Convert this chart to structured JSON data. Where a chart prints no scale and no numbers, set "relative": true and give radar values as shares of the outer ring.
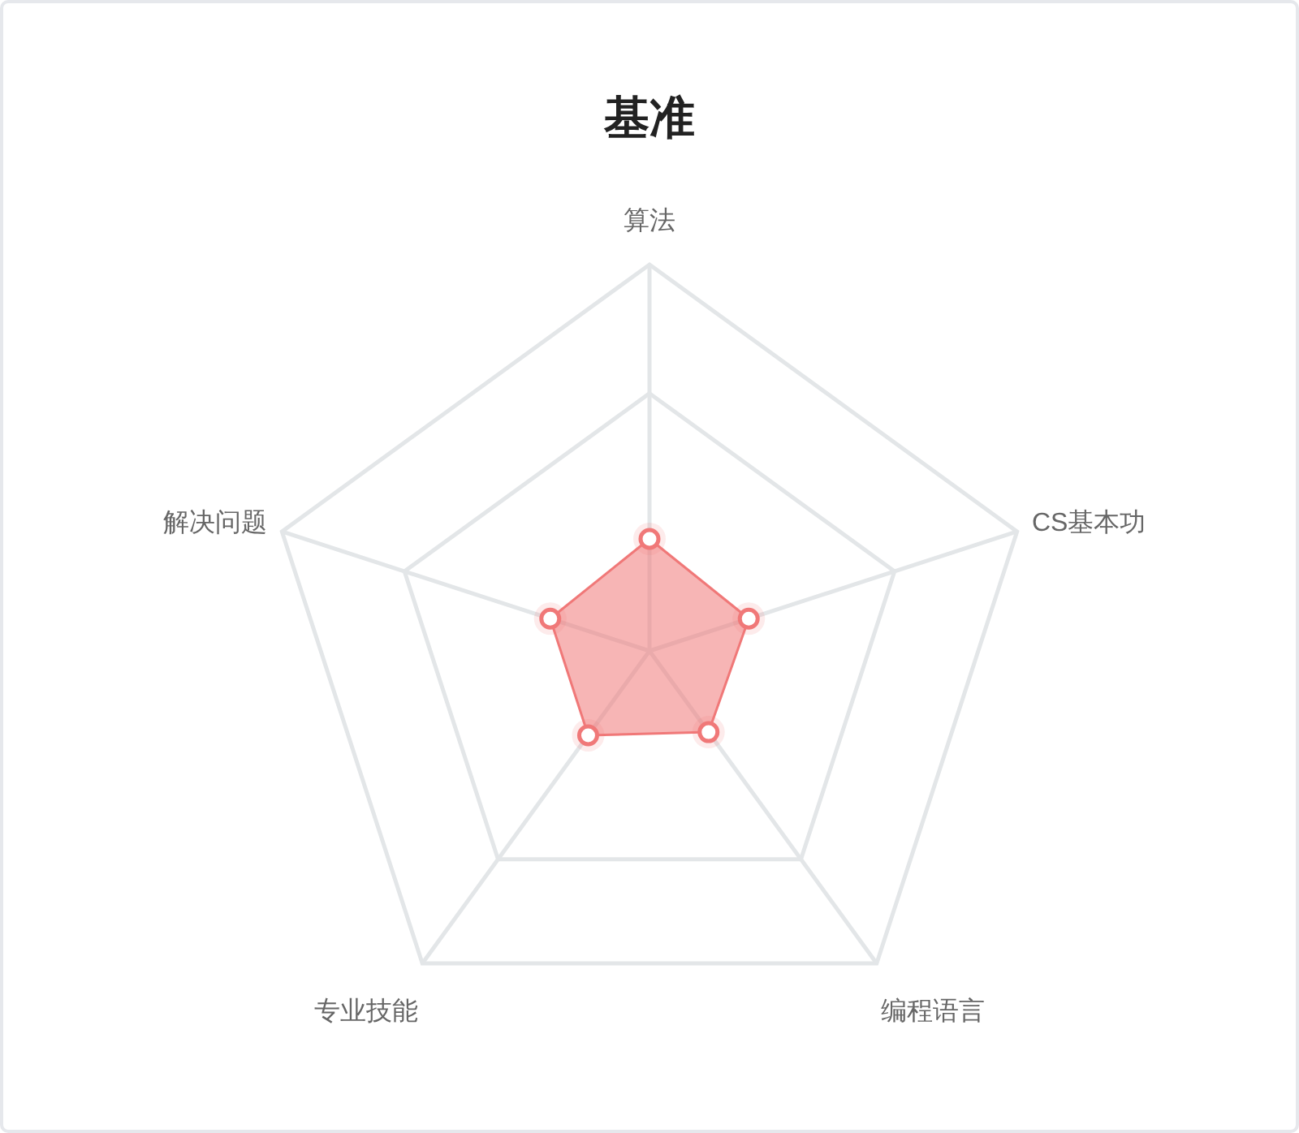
{
  "chart_data": {
    "type": "radar",
    "title": "基准",
    "categories": [
      "算法",
      "CS基本功",
      "编程语言",
      "专业技能",
      "解决问题"
    ],
    "relative": true,
    "marker": "circle",
    "series": [
      {
        "color": "#f07878",
        "values": [
          0.29,
          0.27,
          0.26,
          0.27,
          0.27
        ]
      }
    ]
  }
}
